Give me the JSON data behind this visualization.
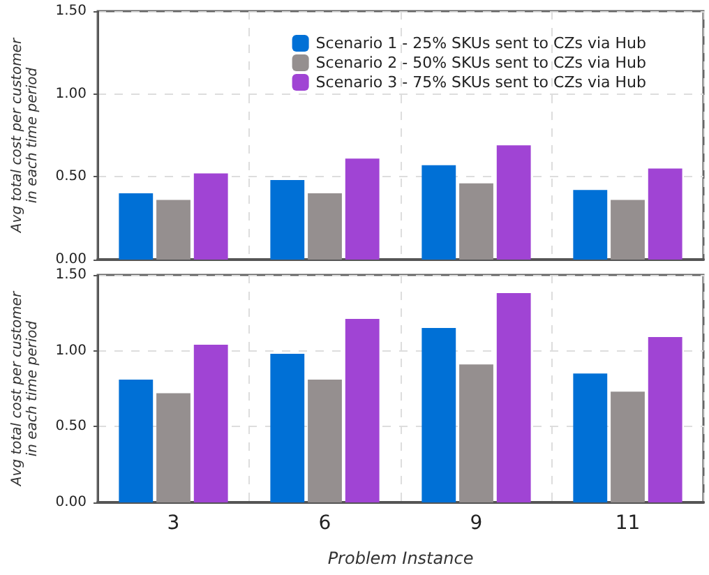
{
  "chart_data": [
    {
      "type": "bar",
      "ylabel": "Avg total cost per customer in each time period",
      "categories": [
        "3",
        "6",
        "9",
        "11"
      ],
      "series": [
        {
          "name": "Scenario 1 - 25% SKUs sent to CZs via Hub",
          "color": "#0070d6",
          "values": [
            0.4,
            0.48,
            0.57,
            0.42
          ]
        },
        {
          "name": "Scenario 2 - 50% SKUs sent to CZs via Hub",
          "color": "#958f8f",
          "values": [
            0.36,
            0.4,
            0.46,
            0.36
          ]
        },
        {
          "name": "Scenario 3 - 75% SKUs sent to CZs via Hub",
          "color": "#a044d4",
          "values": [
            0.52,
            0.61,
            0.69,
            0.55
          ]
        }
      ],
      "ylim": [
        0,
        1.5
      ],
      "yticks": [
        {
          "value": 0,
          "label": "0.00"
        },
        {
          "value": 0.5,
          "label": "0.50"
        },
        {
          "value": 1,
          "label": "1.00"
        },
        {
          "value": 1.5,
          "label": "1.50"
        }
      ],
      "grid": true,
      "legend": "top right",
      "tick_labels": "y"
    },
    {
      "type": "bar",
      "xlabel": "Problem Instance",
      "ylabel": "Avg total cost per customer in each time period",
      "categories": [
        "3",
        "6",
        "9",
        "11"
      ],
      "series": [
        {
          "color": "#0070d6",
          "values": [
            0.81,
            0.98,
            1.15,
            0.85
          ]
        },
        {
          "color": "#958f8f",
          "values": [
            0.72,
            0.81,
            0.91,
            0.73
          ]
        },
        {
          "color": "#a044d4",
          "values": [
            1.04,
            1.21,
            1.38,
            1.09
          ]
        }
      ],
      "ylim": [
        0,
        1.5
      ],
      "yticks": [
        {
          "value": 0,
          "label": "0.00"
        },
        {
          "value": 0.5,
          "label": "0.50"
        },
        {
          "value": 1,
          "label": "1.00"
        },
        {
          "value": 1.5,
          "label": "1.50"
        }
      ],
      "grid": true
    }
  ]
}
